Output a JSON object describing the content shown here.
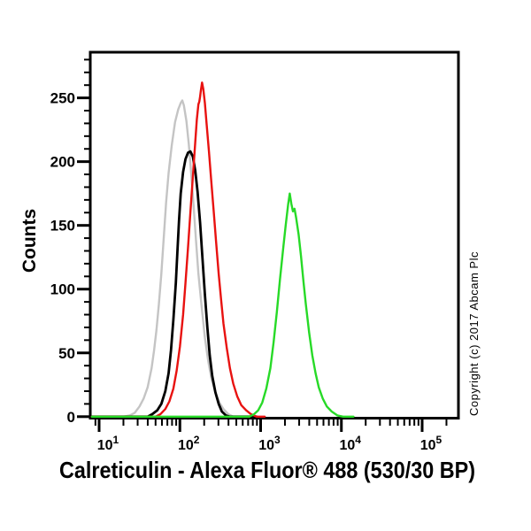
{
  "page": {
    "background": "#ffffff"
  },
  "copyright": "Copyright (c) 2017 Abcam Plc",
  "chart_data": {
    "type": "line",
    "subtype": "flow-cytometry-histogram-overlay",
    "title": "",
    "xlabel": "Calreticulin - Alexa Fluor® 488 (530/30 BP)",
    "ylabel": "Counts",
    "x_scale": "log10",
    "xlim_log10": [
      0.907,
      5.449
    ],
    "x_tick_exponents": [
      1,
      2,
      3,
      4,
      5
    ],
    "x_tick_base": "10",
    "ylim": [
      0,
      285
    ],
    "y_major_ticks": [
      0,
      50,
      100,
      150,
      200,
      250
    ],
    "y_minor_step": 10,
    "y_minor_max": 280,
    "grid": false,
    "legend": "none",
    "axis_color": "#000000",
    "series": [
      {
        "name": "gray",
        "color": "#c4c4c4",
        "stroke_width": 2.4,
        "peak_x": 110,
        "peak_counts": 248,
        "points": [
          [
            0.91,
            0
          ],
          [
            1.3,
            0
          ],
          [
            1.38,
            1
          ],
          [
            1.44,
            3
          ],
          [
            1.5,
            8
          ],
          [
            1.55,
            14
          ],
          [
            1.6,
            23
          ],
          [
            1.65,
            38
          ],
          [
            1.68,
            52
          ],
          [
            1.71,
            68
          ],
          [
            1.74,
            88
          ],
          [
            1.77,
            112
          ],
          [
            1.8,
            140
          ],
          [
            1.83,
            168
          ],
          [
            1.86,
            191
          ],
          [
            1.9,
            213
          ],
          [
            1.94,
            231
          ],
          [
            1.98,
            241
          ],
          [
            2.01,
            246
          ],
          [
            2.03,
            248
          ],
          [
            2.05,
            244
          ],
          [
            2.08,
            232
          ],
          [
            2.11,
            214
          ],
          [
            2.14,
            191
          ],
          [
            2.17,
            165
          ],
          [
            2.2,
            138
          ],
          [
            2.23,
            112
          ],
          [
            2.27,
            86
          ],
          [
            2.31,
            62
          ],
          [
            2.35,
            44
          ],
          [
            2.39,
            30
          ],
          [
            2.44,
            19
          ],
          [
            2.49,
            11
          ],
          [
            2.54,
            6
          ],
          [
            2.6,
            2
          ],
          [
            2.66,
            0
          ],
          [
            2.95,
            0
          ]
        ]
      },
      {
        "name": "black",
        "color": "#000000",
        "stroke_width": 2.8,
        "peak_x": 128,
        "peak_counts": 208,
        "points": [
          [
            0.91,
            0
          ],
          [
            1.6,
            0
          ],
          [
            1.66,
            2
          ],
          [
            1.72,
            5
          ],
          [
            1.77,
            10
          ],
          [
            1.82,
            20
          ],
          [
            1.86,
            34
          ],
          [
            1.89,
            52
          ],
          [
            1.92,
            76
          ],
          [
            1.95,
            105
          ],
          [
            1.97,
            130
          ],
          [
            1.99,
            154
          ],
          [
            2.01,
            175
          ],
          [
            2.04,
            192
          ],
          [
            2.07,
            202
          ],
          [
            2.1,
            207
          ],
          [
            2.13,
            208
          ],
          [
            2.16,
            204
          ],
          [
            2.19,
            193
          ],
          [
            2.22,
            176
          ],
          [
            2.25,
            152
          ],
          [
            2.28,
            124
          ],
          [
            2.31,
            96
          ],
          [
            2.34,
            70
          ],
          [
            2.37,
            48
          ],
          [
            2.4,
            32
          ],
          [
            2.44,
            19
          ],
          [
            2.48,
            10
          ],
          [
            2.52,
            4
          ],
          [
            2.57,
            1
          ],
          [
            2.62,
            0
          ],
          [
            2.95,
            0
          ]
        ]
      },
      {
        "name": "red",
        "color": "#e81210",
        "stroke_width": 2.4,
        "peak_x": 188,
        "peak_counts": 262,
        "points": [
          [
            0.91,
            0
          ],
          [
            1.7,
            0
          ],
          [
            1.76,
            2
          ],
          [
            1.82,
            6
          ],
          [
            1.87,
            12
          ],
          [
            1.92,
            22
          ],
          [
            1.96,
            36
          ],
          [
            2.0,
            55
          ],
          [
            2.04,
            80
          ],
          [
            2.07,
            105
          ],
          [
            2.1,
            132
          ],
          [
            2.13,
            160
          ],
          [
            2.16,
            188
          ],
          [
            2.19,
            215
          ],
          [
            2.21,
            233
          ],
          [
            2.23,
            245
          ],
          [
            2.24,
            247
          ],
          [
            2.25,
            251
          ],
          [
            2.26,
            256
          ],
          [
            2.275,
            262
          ],
          [
            2.29,
            257
          ],
          [
            2.31,
            246
          ],
          [
            2.33,
            230
          ],
          [
            2.36,
            208
          ],
          [
            2.39,
            184
          ],
          [
            2.42,
            160
          ],
          [
            2.45,
            136
          ],
          [
            2.48,
            112
          ],
          [
            2.51,
            92
          ],
          [
            2.54,
            73
          ],
          [
            2.58,
            54
          ],
          [
            2.62,
            38
          ],
          [
            2.66,
            26
          ],
          [
            2.71,
            16
          ],
          [
            2.76,
            9
          ],
          [
            2.82,
            5
          ],
          [
            2.88,
            2
          ],
          [
            2.95,
            0
          ],
          [
            3.05,
            0
          ]
        ]
      },
      {
        "name": "green",
        "color": "#27da27",
        "stroke_width": 2.4,
        "peak_x": 2300,
        "peak_counts": 175,
        "points": [
          [
            0.91,
            0
          ],
          [
            2.86,
            0
          ],
          [
            2.92,
            2
          ],
          [
            2.97,
            5
          ],
          [
            3.02,
            11
          ],
          [
            3.07,
            22
          ],
          [
            3.12,
            38
          ],
          [
            3.16,
            58
          ],
          [
            3.2,
            82
          ],
          [
            3.24,
            108
          ],
          [
            3.28,
            132
          ],
          [
            3.31,
            150
          ],
          [
            3.34,
            166
          ],
          [
            3.36,
            175
          ],
          [
            3.38,
            167
          ],
          [
            3.4,
            161
          ],
          [
            3.42,
            163
          ],
          [
            3.44,
            156
          ],
          [
            3.47,
            143
          ],
          [
            3.5,
            126
          ],
          [
            3.53,
            106
          ],
          [
            3.56,
            88
          ],
          [
            3.6,
            66
          ],
          [
            3.64,
            48
          ],
          [
            3.68,
            34
          ],
          [
            3.72,
            23
          ],
          [
            3.77,
            14
          ],
          [
            3.82,
            8
          ],
          [
            3.88,
            4
          ],
          [
            3.95,
            1
          ],
          [
            4.02,
            0
          ],
          [
            4.15,
            0
          ]
        ]
      }
    ]
  }
}
